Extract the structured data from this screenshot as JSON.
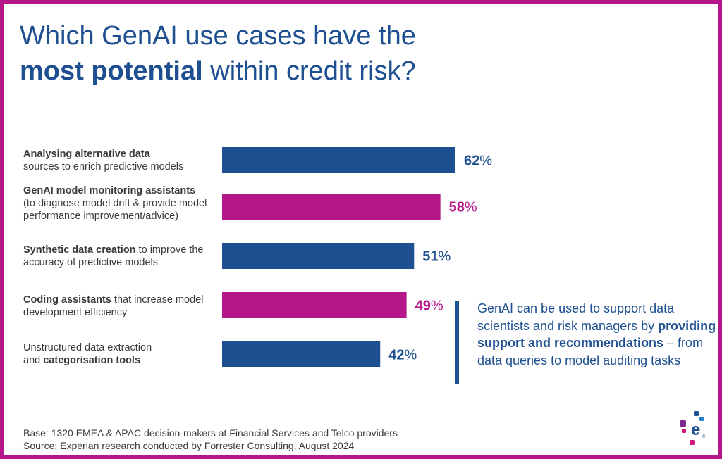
{
  "title": {
    "line1": "Which GenAI use cases have the",
    "line2_bold": "most potential",
    "line2_rest": " within credit risk?"
  },
  "colors": {
    "blue": "#1d4f91",
    "magenta": "#b5168a",
    "border": "#b5168a"
  },
  "chart_data": {
    "type": "bar",
    "orientation": "horizontal",
    "categories": [
      "Analysing alternative data sources to enrich predictive models",
      "GenAI model monitoring assistants (to diagnose model drift & provide model performance improvement/advice)",
      "Synthetic data creation to improve the accuracy of predictive models",
      "Coding assistants that increase model development efficiency",
      "Unstructured data extraction and categorisation tools"
    ],
    "values": [
      62,
      58,
      51,
      49,
      42
    ],
    "value_labels": [
      "62%",
      "58%",
      "51%",
      "49%",
      "42%"
    ],
    "bar_colors": [
      "#1d4f91",
      "#b5168a",
      "#1d4f91",
      "#b5168a",
      "#1d4f91"
    ],
    "xlim": [
      0,
      100
    ],
    "grid": false,
    "label_parts": [
      {
        "bold": "Analysing alternative data",
        "rest": "sources to enrich predictive models",
        "rest_bold": ""
      },
      {
        "bold": "GenAI model monitoring assistants",
        "rest": "(to diagnose model drift & provide model performance improvement/advice)",
        "rest_bold": ""
      },
      {
        "bold": "Synthetic data creation",
        "rest": " to improve the accuracy of predictive models",
        "rest_bold": ""
      },
      {
        "bold": "Coding assistants",
        "rest": " that increase model development efficiency",
        "rest_bold": ""
      },
      {
        "bold": "",
        "rest": "Unstructured data extraction and ",
        "rest_bold": "categorisation tools"
      }
    ]
  },
  "callout": {
    "text_before": "GenAI can be used to support data scientists and risk managers by ",
    "text_bold": "providing support and recommendations",
    "text_after": " – from data queries to model auditing tasks"
  },
  "footer": {
    "base": "Base: 1320 EMEA & APAC decision-makers at Financial Services and Telco providers",
    "source": "Source: Experian research conducted by Forrester Consulting, August 2024"
  },
  "logo": {
    "icon": "experian-logo-icon",
    "letter": "e",
    "mark": "®"
  }
}
